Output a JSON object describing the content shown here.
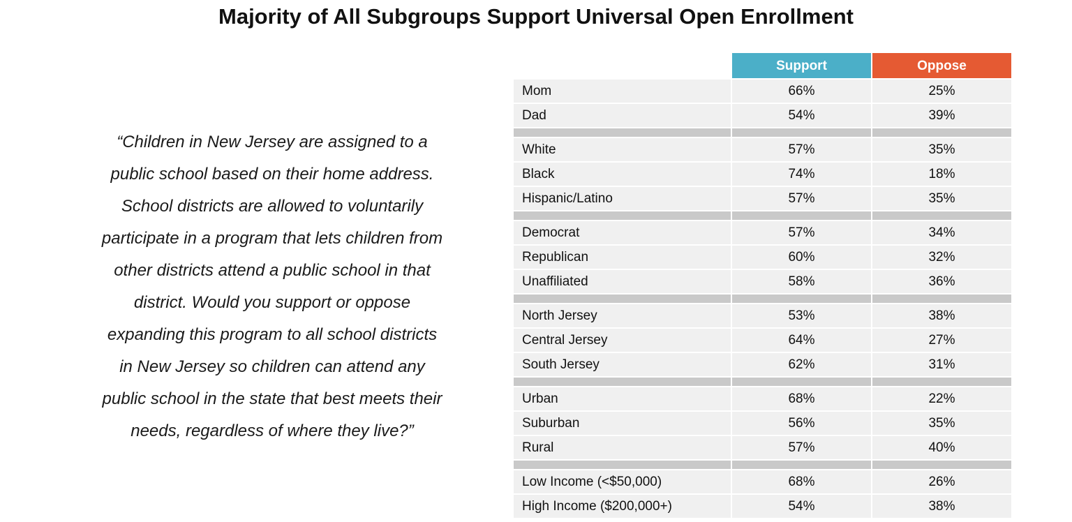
{
  "chart_data": {
    "type": "table",
    "title": "Majority of All Subgroups Support Universal Open Enrollment",
    "question_lines": [
      "“Children in New Jersey are assigned to a",
      "public school based on their home address.",
      "School districts are allowed to voluntarily",
      "participate in a program that lets children from",
      "other districts attend a public school in that",
      "district. Would you support or oppose",
      "expanding this program to all school districts",
      "in New Jersey so children can attend any",
      "public school in the state that best meets their",
      "needs, regardless of where they live?”"
    ],
    "columns": [
      {
        "name": "Support",
        "color": "#4bafc8"
      },
      {
        "name": "Oppose",
        "color": "#e55a33"
      }
    ],
    "groups": [
      {
        "rows": [
          {
            "label": "Mom",
            "support": "66%",
            "oppose": "25%"
          },
          {
            "label": "Dad",
            "support": "54%",
            "oppose": "39%"
          }
        ]
      },
      {
        "rows": [
          {
            "label": "White",
            "support": "57%",
            "oppose": "35%"
          },
          {
            "label": "Black",
            "support": "74%",
            "oppose": "18%"
          },
          {
            "label": "Hispanic/Latino",
            "support": "57%",
            "oppose": "35%"
          }
        ]
      },
      {
        "rows": [
          {
            "label": "Democrat",
            "support": "57%",
            "oppose": "34%"
          },
          {
            "label": "Republican",
            "support": "60%",
            "oppose": "32%"
          },
          {
            "label": "Unaffiliated",
            "support": "58%",
            "oppose": "36%"
          }
        ]
      },
      {
        "rows": [
          {
            "label": "North Jersey",
            "support": "53%",
            "oppose": "38%"
          },
          {
            "label": "Central Jersey",
            "support": "64%",
            "oppose": "27%"
          },
          {
            "label": "South Jersey",
            "support": "62%",
            "oppose": "31%"
          }
        ]
      },
      {
        "rows": [
          {
            "label": "Urban",
            "support": "68%",
            "oppose": "22%"
          },
          {
            "label": "Suburban",
            "support": "56%",
            "oppose": "35%"
          },
          {
            "label": "Rural",
            "support": "57%",
            "oppose": "40%"
          }
        ]
      },
      {
        "rows": [
          {
            "label": "Low Income (<$50,000)",
            "support": "68%",
            "oppose": "26%"
          },
          {
            "label": "High Income ($200,000+)",
            "support": "54%",
            "oppose": "38%"
          }
        ]
      }
    ]
  }
}
